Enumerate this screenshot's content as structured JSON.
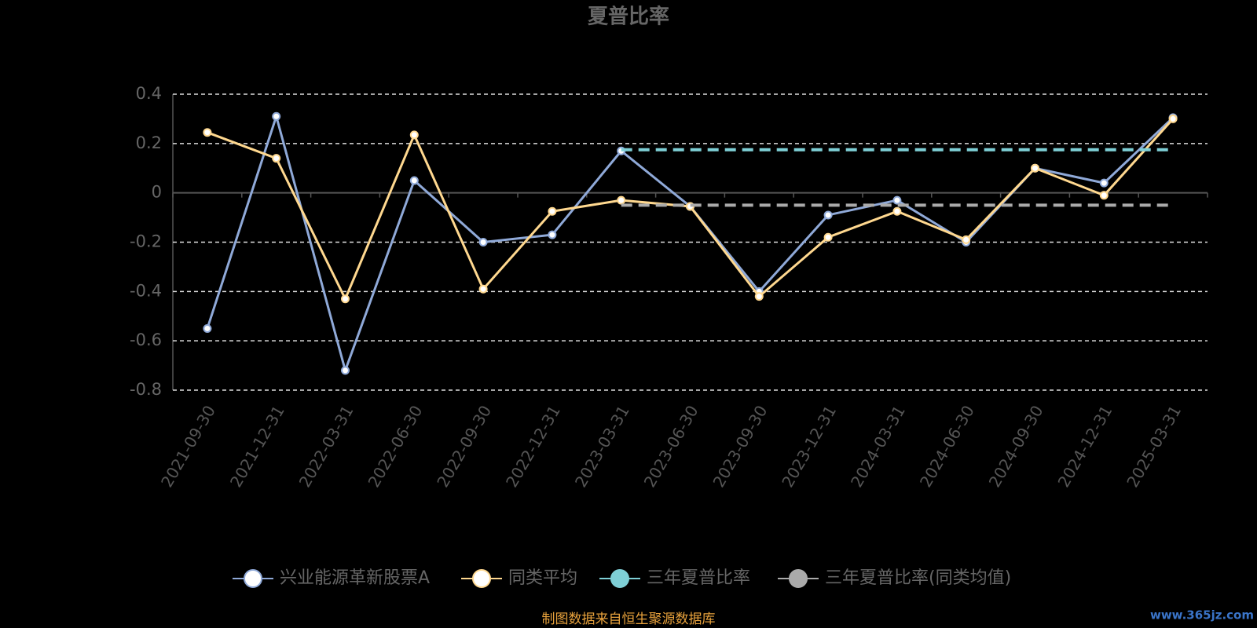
{
  "chart_data": {
    "type": "line",
    "title": "夏普比率",
    "categories": [
      "2021-09-30",
      "2021-12-31",
      "2022-03-31",
      "2022-06-30",
      "2022-09-30",
      "2022-12-31",
      "2023-03-31",
      "2023-06-30",
      "2023-09-30",
      "2023-12-31",
      "2024-03-31",
      "2024-06-30",
      "2024-09-30",
      "2024-12-31",
      "2025-03-31"
    ],
    "series": [
      {
        "name": "兴业能源革新股票A",
        "color": "#8fa9d8",
        "values": [
          -0.55,
          0.31,
          -0.72,
          0.05,
          -0.2,
          -0.17,
          0.17,
          -0.055,
          -0.4,
          -0.09,
          -0.03,
          -0.2,
          0.1,
          0.04,
          0.305
        ]
      },
      {
        "name": "同类平均",
        "color": "#ffd88f",
        "values": [
          0.245,
          0.14,
          -0.43,
          0.235,
          -0.39,
          -0.075,
          -0.03,
          -0.055,
          -0.42,
          -0.18,
          -0.075,
          -0.19,
          0.1,
          -0.01,
          0.3
        ]
      },
      {
        "name": "三年夏普比率",
        "color": "#7ecfd6",
        "dashed": true,
        "values": [
          null,
          null,
          null,
          null,
          null,
          null,
          0.175,
          0.175,
          0.175,
          0.175,
          0.175,
          0.175,
          0.175,
          0.175,
          0.175
        ]
      },
      {
        "name": "三年夏普比率(同类均值)",
        "color": "#aaaaaa",
        "dashed": true,
        "values": [
          null,
          null,
          null,
          null,
          null,
          null,
          -0.05,
          -0.05,
          -0.05,
          -0.05,
          -0.05,
          -0.05,
          -0.05,
          -0.05,
          -0.05
        ]
      }
    ],
    "ylim": [
      -0.8,
      0.4
    ],
    "yticks": [
      0.4,
      0.2,
      0,
      -0.2,
      -0.4,
      -0.6,
      -0.8
    ],
    "grid": true,
    "source": "制图数据来自恒生聚源数据库",
    "watermark": "www.365jz.com"
  }
}
